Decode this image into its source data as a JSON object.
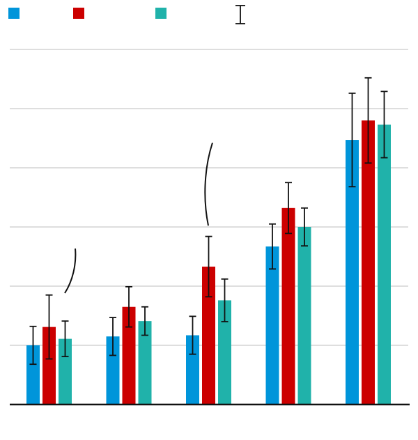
{
  "chart_data": {
    "type": "bar",
    "title": "",
    "xlabel": "",
    "ylabel": "",
    "ylim": [
      0,
      6
    ],
    "grid": true,
    "legend_placement": "top-left",
    "categories": [
      "",
      "",
      "",
      "",
      ""
    ],
    "series": [
      {
        "color": "#0095DA",
        "values": [
          1.0,
          1.15,
          1.17,
          2.67,
          4.47
        ],
        "errors": [
          0.32,
          0.32,
          0.32,
          0.38,
          0.79
        ]
      },
      {
        "color": "#CC0000",
        "values": [
          1.31,
          1.65,
          2.33,
          3.32,
          4.8
        ],
        "errors": [
          0.54,
          0.34,
          0.51,
          0.43,
          0.72
        ]
      },
      {
        "color": "#20B2AA",
        "values": [
          1.11,
          1.41,
          1.76,
          3.0,
          4.73
        ],
        "errors": [
          0.3,
          0.24,
          0.36,
          0.32,
          0.56
        ]
      }
    ],
    "error_bar_legend": true
  }
}
